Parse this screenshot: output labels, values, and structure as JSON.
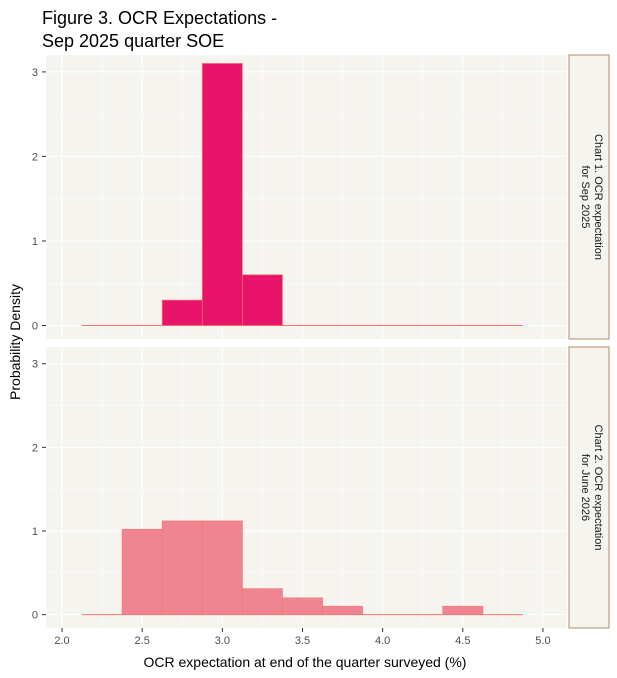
{
  "figure": {
    "title_line1": "Figure 3. OCR Expectations -",
    "title_line2": "Sep 2025 quarter SOE",
    "xlabel": "OCR expectation at end of the quarter surveyed (%)",
    "ylabel": "Probability Density"
  },
  "colors": {
    "panel_bg": "#f5f4ef",
    "grid": "#ffffff",
    "strip_border": "#b08c6e",
    "bar1_fill": "#e8146a",
    "bar2_fill": "#f08592",
    "baseline": "#f8766d"
  },
  "chart_data": [
    {
      "type": "bar",
      "panel_label_line1": "Chart 1. OCR expectation",
      "panel_label_line2": "for Sep 2025",
      "x_range": [
        2.125,
        4.875
      ],
      "bin_width": 0.25,
      "bins": [
        {
          "x": 2.75,
          "y": 0.3
        },
        {
          "x": 3.0,
          "y": 3.1
        },
        {
          "x": 3.25,
          "y": 0.6
        }
      ],
      "xlim": [
        1.9,
        5.15
      ],
      "ylim": [
        -0.16,
        3.2
      ],
      "xticks": [
        "2.0",
        "2.5",
        "3.0",
        "3.5",
        "4.0",
        "4.5",
        "5.0"
      ],
      "yticks": [
        "0",
        "1",
        "2",
        "3"
      ]
    },
    {
      "type": "bar",
      "panel_label_line1": "Chart 2. OCR expectation",
      "panel_label_line2": "for June 2026",
      "x_range": [
        2.125,
        4.875
      ],
      "bin_width": 0.25,
      "bins": [
        {
          "x": 2.5,
          "y": 1.02
        },
        {
          "x": 2.75,
          "y": 1.12
        },
        {
          "x": 3.0,
          "y": 1.12
        },
        {
          "x": 3.25,
          "y": 0.31
        },
        {
          "x": 3.5,
          "y": 0.2
        },
        {
          "x": 3.75,
          "y": 0.1
        },
        {
          "x": 4.5,
          "y": 0.1
        }
      ],
      "xlim": [
        1.9,
        5.15
      ],
      "ylim": [
        -0.16,
        3.2
      ],
      "xticks": [
        "2.0",
        "2.5",
        "3.0",
        "3.5",
        "4.0",
        "4.5",
        "5.0"
      ],
      "yticks": [
        "0",
        "1",
        "2",
        "3"
      ]
    }
  ]
}
